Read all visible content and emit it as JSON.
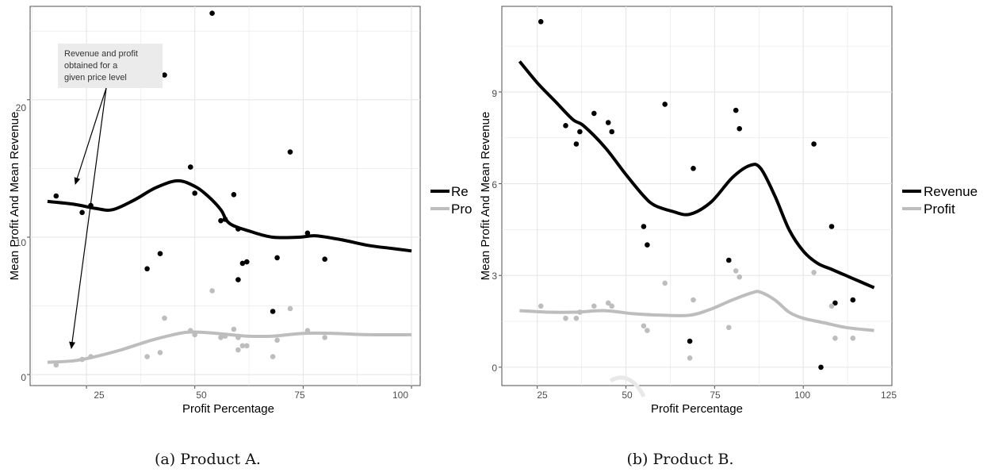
{
  "colors": {
    "revenue": "#000000",
    "profit": "#bdbdbd",
    "grid": "#e6e6e6",
    "panel_border": "#4d4d4d"
  },
  "panels": [
    {
      "caption": "(a) Product A.",
      "xlabel": "Profit Percentage",
      "ylabel": "Mean Profit And Mean Revenue",
      "xticks": [
        "25",
        "50",
        "75",
        "100"
      ],
      "yticks": [
        "0",
        "10",
        "20"
      ],
      "legend": {
        "revenue": "Re",
        "profit": "Pro"
      },
      "annotation": [
        "Revenue and profit",
        "obtained for a",
        "given price level"
      ]
    },
    {
      "caption": "(b) Product B.",
      "xlabel": "Profit Percentage",
      "ylabel": "Mean Profit And Mean Revenue",
      "xticks": [
        "25",
        "50",
        "75",
        "100",
        "125"
      ],
      "yticks": [
        "0",
        "3",
        "6",
        "9"
      ],
      "legend": {
        "revenue": "Revenue",
        "profit": "Profit"
      }
    }
  ],
  "chart_data": [
    {
      "type": "scatter",
      "title": "",
      "xlabel": "Profit Percentage",
      "ylabel": "Mean Profit And Mean Revenue",
      "xlim": [
        12,
        102
      ],
      "ylim": [
        -0.8,
        26.8
      ],
      "grid": true,
      "legend_position": "right",
      "series": [
        {
          "name": "Revenue",
          "kind": "points",
          "color": "#000000",
          "points": [
            [
              18,
              13.0
            ],
            [
              24,
              11.8
            ],
            [
              26,
              12.3
            ],
            [
              39,
              7.7
            ],
            [
              42,
              8.8
            ],
            [
              43,
              21.8
            ],
            [
              49,
              15.1
            ],
            [
              50,
              13.2
            ],
            [
              54,
              26.3
            ],
            [
              56,
              11.2
            ],
            [
              57,
              11.3
            ],
            [
              59,
              13.1
            ],
            [
              60,
              10.6
            ],
            [
              60,
              6.9
            ],
            [
              61,
              8.1
            ],
            [
              62,
              8.2
            ],
            [
              68,
              4.6
            ],
            [
              69,
              8.5
            ],
            [
              72,
              16.2
            ],
            [
              76,
              10.3
            ],
            [
              80,
              8.4
            ]
          ]
        },
        {
          "name": "Profit",
          "kind": "points",
          "color": "#bdbdbd",
          "points": [
            [
              18,
              0.7
            ],
            [
              24,
              1.1
            ],
            [
              26,
              1.3
            ],
            [
              39,
              1.3
            ],
            [
              42,
              1.6
            ],
            [
              43,
              4.1
            ],
            [
              49,
              3.2
            ],
            [
              50,
              2.9
            ],
            [
              54,
              6.1
            ],
            [
              56,
              2.7
            ],
            [
              57,
              2.8
            ],
            [
              59,
              3.3
            ],
            [
              60,
              2.7
            ],
            [
              60,
              1.8
            ],
            [
              61,
              2.1
            ],
            [
              62,
              2.1
            ],
            [
              68,
              1.3
            ],
            [
              69,
              2.5
            ],
            [
              72,
              4.8
            ],
            [
              76,
              3.2
            ],
            [
              80,
              2.7
            ]
          ]
        },
        {
          "name": "Revenue",
          "kind": "smooth",
          "color": "#000000",
          "points": [
            [
              16,
              12.6
            ],
            [
              22,
              12.4
            ],
            [
              27,
              12.1
            ],
            [
              31,
              12.0
            ],
            [
              36,
              12.7
            ],
            [
              41,
              13.6
            ],
            [
              46,
              14.1
            ],
            [
              50,
              13.7
            ],
            [
              53,
              13.0
            ],
            [
              56,
              12.0
            ],
            [
              58,
              11.0
            ],
            [
              63,
              10.4
            ],
            [
              68,
              10.0
            ],
            [
              74,
              10.0
            ],
            [
              78,
              10.1
            ],
            [
              84,
              9.8
            ],
            [
              90,
              9.4
            ],
            [
              95,
              9.2
            ],
            [
              100,
              9.0
            ]
          ]
        },
        {
          "name": "Profit",
          "kind": "smooth",
          "color": "#bdbdbd",
          "points": [
            [
              16,
              0.9
            ],
            [
              22,
              1.0
            ],
            [
              27,
              1.3
            ],
            [
              33,
              1.8
            ],
            [
              40,
              2.5
            ],
            [
              45,
              2.9
            ],
            [
              49,
              3.1
            ],
            [
              55,
              3.0
            ],
            [
              62,
              2.8
            ],
            [
              68,
              2.8
            ],
            [
              75,
              3.0
            ],
            [
              82,
              3.0
            ],
            [
              90,
              2.9
            ],
            [
              100,
              2.9
            ]
          ]
        }
      ]
    },
    {
      "type": "scatter",
      "title": "",
      "xlabel": "Profit Percentage",
      "ylabel": "Mean Profit And Mean Revenue",
      "xlim": [
        15,
        125
      ],
      "ylim": [
        -0.6,
        11.8
      ],
      "grid": true,
      "legend_position": "right",
      "series": [
        {
          "name": "Revenue",
          "kind": "points",
          "color": "#000000",
          "points": [
            [
              26,
              11.3
            ],
            [
              33,
              7.9
            ],
            [
              36,
              7.3
            ],
            [
              37,
              7.7
            ],
            [
              41,
              8.3
            ],
            [
              45,
              8.0
            ],
            [
              46,
              7.7
            ],
            [
              55,
              4.6
            ],
            [
              56,
              4.0
            ],
            [
              61,
              8.6
            ],
            [
              68,
              0.85
            ],
            [
              69,
              6.5
            ],
            [
              79,
              3.5
            ],
            [
              81,
              8.4
            ],
            [
              82,
              7.8
            ],
            [
              103,
              7.3
            ],
            [
              105,
              0.0
            ],
            [
              108,
              4.6
            ],
            [
              109,
              2.1
            ],
            [
              114,
              2.2
            ]
          ]
        },
        {
          "name": "Profit",
          "kind": "points",
          "color": "#bdbdbd",
          "points": [
            [
              26,
              2.0
            ],
            [
              33,
              1.6
            ],
            [
              36,
              1.6
            ],
            [
              37,
              1.8
            ],
            [
              41,
              2.0
            ],
            [
              45,
              2.1
            ],
            [
              46,
              2.0
            ],
            [
              55,
              1.35
            ],
            [
              56,
              1.2
            ],
            [
              61,
              2.75
            ],
            [
              68,
              0.3
            ],
            [
              69,
              2.2
            ],
            [
              79,
              1.3
            ],
            [
              81,
              3.15
            ],
            [
              82,
              2.95
            ],
            [
              103,
              3.1
            ],
            [
              108,
              2.0
            ],
            [
              109,
              0.95
            ],
            [
              114,
              0.95
            ]
          ]
        },
        {
          "name": "Revenue",
          "kind": "smooth",
          "color": "#000000",
          "points": [
            [
              20,
              10.0
            ],
            [
              25,
              9.3
            ],
            [
              30,
              8.7
            ],
            [
              35,
              8.1
            ],
            [
              38,
              7.9
            ],
            [
              44,
              7.2
            ],
            [
              50,
              6.3
            ],
            [
              55,
              5.6
            ],
            [
              58,
              5.3
            ],
            [
              63,
              5.1
            ],
            [
              68,
              5.0
            ],
            [
              74,
              5.4
            ],
            [
              80,
              6.2
            ],
            [
              85,
              6.6
            ],
            [
              88,
              6.5
            ],
            [
              92,
              5.6
            ],
            [
              96,
              4.5
            ],
            [
              100,
              3.8
            ],
            [
              104,
              3.4
            ],
            [
              108,
              3.2
            ],
            [
              112,
              3.0
            ],
            [
              116,
              2.8
            ],
            [
              120,
              2.6
            ]
          ]
        },
        {
          "name": "Profit",
          "kind": "smooth",
          "color": "#bdbdbd",
          "points": [
            [
              20,
              1.85
            ],
            [
              28,
              1.8
            ],
            [
              36,
              1.8
            ],
            [
              44,
              1.85
            ],
            [
              52,
              1.75
            ],
            [
              60,
              1.7
            ],
            [
              68,
              1.7
            ],
            [
              74,
              1.9
            ],
            [
              80,
              2.2
            ],
            [
              86,
              2.45
            ],
            [
              88,
              2.45
            ],
            [
              92,
              2.2
            ],
            [
              96,
              1.8
            ],
            [
              100,
              1.6
            ],
            [
              106,
              1.45
            ],
            [
              112,
              1.3
            ],
            [
              120,
              1.2
            ]
          ]
        }
      ]
    }
  ]
}
